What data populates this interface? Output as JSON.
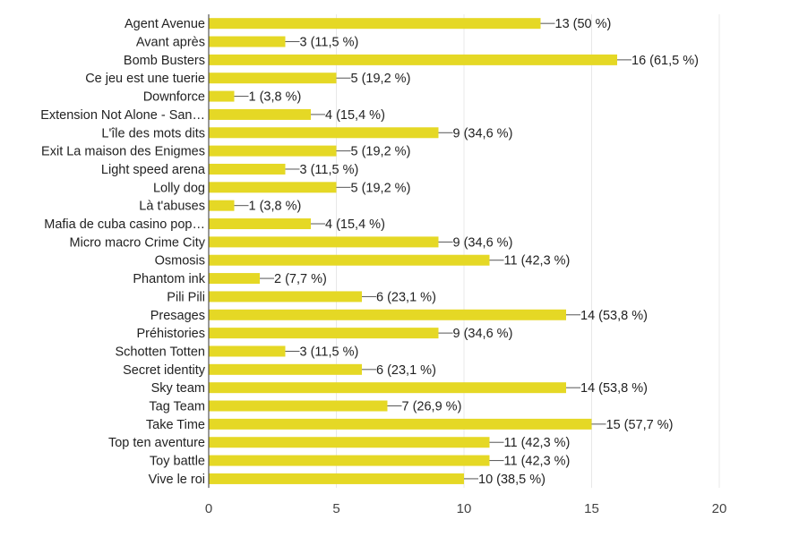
{
  "chart_data": {
    "type": "bar",
    "orientation": "horizontal",
    "bar_color": "#e5d825",
    "categories": [
      "Agent Avenue",
      "Avant après",
      "Bomb Busters",
      "Ce jeu est une tuerie",
      "Downforce",
      "Extension Not Alone - San…",
      "L'île des mots dits",
      "Exit La maison des Enigmes",
      "Light speed arena",
      "Lolly dog",
      "Là t'abuses",
      "Mafia de cuba casino pop…",
      "Micro macro Crime City",
      "Osmosis",
      "Phantom ink",
      "Pili Pili",
      "Presages",
      "Préhistories",
      "Schotten Totten",
      "Secret identity",
      "Sky team",
      "Tag Team",
      "Take Time",
      "Top ten aventure",
      "Toy battle",
      "Vive le roi"
    ],
    "values": [
      13,
      3,
      16,
      5,
      1,
      4,
      9,
      5,
      3,
      5,
      1,
      4,
      9,
      11,
      2,
      6,
      14,
      9,
      3,
      6,
      14,
      7,
      15,
      11,
      11,
      10
    ],
    "value_labels": [
      "13 (50 %)",
      "3 (11,5 %)",
      "16 (61,5 %)",
      "5 (19,2 %)",
      "1 (3,8 %)",
      "4 (15,4 %)",
      "9 (34,6 %)",
      "5 (19,2 %)",
      "3 (11,5 %)",
      "5 (19,2 %)",
      "1 (3,8 %)",
      "4 (15,4 %)",
      "9 (34,6 %)",
      "11 (42,3 %)",
      "2 (7,7 %)",
      "6 (23,1 %)",
      "14 (53,8 %)",
      "9 (34,6 %)",
      "3 (11,5 %)",
      "6 (23,1 %)",
      "14 (53,8 %)",
      "7 (26,9 %)",
      "15 (57,7 %)",
      "11 (42,3 %)",
      "11 (42,3 %)",
      "10 (38,5 %)"
    ],
    "xlim": [
      0,
      20
    ],
    "xticks": [
      0,
      5,
      10,
      15,
      20
    ],
    "xtick_labels": [
      "0",
      "5",
      "10",
      "15",
      "20"
    ],
    "title": "",
    "xlabel": "",
    "ylabel": "",
    "grid": true,
    "legend": "none"
  }
}
